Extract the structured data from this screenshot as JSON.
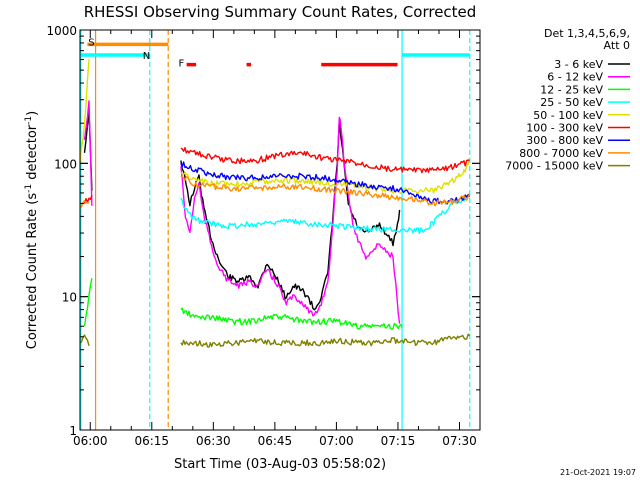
{
  "chart_data": {
    "type": "line",
    "title": "RHESSI Observing Summary Count Rates, Corrected",
    "xlabel": "Start Time (03-Aug-03 05:58:02)",
    "ylabel_main": "Corrected Count Rate (s",
    "ylabel_exp1": "-1",
    "ylabel_mid": " detector",
    "ylabel_exp2": "-1",
    "ylabel_end": ")",
    "yscale": "log",
    "x_range_min": [
      357.5,
      455
    ],
    "ylim": [
      1,
      1000
    ],
    "x_tick_labels": [
      {
        "t": 360,
        "label": "06:00"
      },
      {
        "t": 375,
        "label": "06:15"
      },
      {
        "t": 390,
        "label": "06:30"
      },
      {
        "t": 405,
        "label": "06:45"
      },
      {
        "t": 420,
        "label": "07:00"
      },
      {
        "t": 435,
        "label": "07:15"
      },
      {
        "t": 450,
        "label": "07:30"
      }
    ],
    "y_tick_labels": [
      {
        "v": 1,
        "label": "1"
      },
      {
        "v": 10,
        "label": "10"
      },
      {
        "v": 100,
        "label": "100"
      },
      {
        "v": 1000,
        "label": "1000"
      }
    ],
    "legend_header": [
      "Det 1,3,4,5,6,9,",
      "Att 0"
    ],
    "legend_position": "right",
    "series": [
      {
        "name": "3 - 6 keV",
        "color": "#000000",
        "points": [
          [
            358.6,
            120
          ],
          [
            359.7,
            250
          ],
          [
            360.4,
            60
          ],
          [
            368.5,
            null
          ],
          [
            382.1,
            105
          ],
          [
            384.3,
            50
          ],
          [
            385.4,
            65
          ],
          [
            386.5,
            80
          ],
          [
            387.7,
            45
          ],
          [
            389.9,
            25
          ],
          [
            391.6,
            18
          ],
          [
            393.8,
            14
          ],
          [
            396.5,
            13
          ],
          [
            398.7,
            14
          ],
          [
            400.9,
            12
          ],
          [
            403.1,
            18
          ],
          [
            405.9,
            13
          ],
          [
            407.5,
            10
          ],
          [
            409.7,
            12
          ],
          [
            411.8,
            11
          ],
          [
            413.0,
            10
          ],
          [
            414.6,
            8
          ],
          [
            416.3,
            10
          ],
          [
            417.9,
            15
          ],
          [
            419.0,
            35
          ],
          [
            419.6,
            60
          ],
          [
            420.2,
            100
          ],
          [
            420.7,
            200
          ],
          [
            421.2,
            150
          ],
          [
            421.8,
            100
          ],
          [
            422.9,
            50
          ],
          [
            424.0,
            40
          ],
          [
            425.6,
            32
          ],
          [
            427.2,
            30
          ],
          [
            428.9,
            32
          ],
          [
            430.5,
            35
          ],
          [
            432.1,
            30
          ],
          [
            433.8,
            25
          ],
          [
            434.9,
            35
          ],
          [
            435.4,
            45
          ],
          [
            436.0,
            null
          ]
        ]
      },
      {
        "name": "6 - 12 keV",
        "color": "#ff00ff",
        "points": [
          [
            358.6,
            150
          ],
          [
            359.7,
            280
          ],
          [
            360.4,
            50
          ],
          [
            368.5,
            null
          ],
          [
            382.1,
            95
          ],
          [
            383.2,
            40
          ],
          [
            384.3,
            30
          ],
          [
            385.4,
            55
          ],
          [
            386.5,
            70
          ],
          [
            387.7,
            40
          ],
          [
            389.9,
            22
          ],
          [
            391.6,
            16
          ],
          [
            393.8,
            13
          ],
          [
            396.5,
            12
          ],
          [
            398.7,
            13
          ],
          [
            400.9,
            12
          ],
          [
            403.1,
            16
          ],
          [
            405.9,
            12
          ],
          [
            407.5,
            9
          ],
          [
            409.7,
            10
          ],
          [
            411.8,
            9
          ],
          [
            413.0,
            8
          ],
          [
            414.6,
            7
          ],
          [
            416.3,
            9
          ],
          [
            417.9,
            13
          ],
          [
            419.0,
            30
          ],
          [
            419.6,
            55
          ],
          [
            420.2,
            90
          ],
          [
            420.7,
            230
          ],
          [
            421.2,
            180
          ],
          [
            421.8,
            110
          ],
          [
            422.9,
            60
          ],
          [
            424.0,
            35
          ],
          [
            425.6,
            25
          ],
          [
            427.2,
            20
          ],
          [
            428.9,
            22
          ],
          [
            430.5,
            25
          ],
          [
            432.1,
            22
          ],
          [
            433.8,
            20
          ],
          [
            435.4,
            6
          ],
          [
            436.0,
            null
          ]
        ]
      },
      {
        "name": "12 - 25 keV",
        "color": "#00ff00",
        "points": [
          [
            358.6,
            6
          ],
          [
            359.7,
            10
          ],
          [
            360.4,
            14
          ],
          [
            368.5,
            null
          ],
          [
            382.1,
            8
          ],
          [
            385.4,
            7
          ],
          [
            389.9,
            7
          ],
          [
            394.9,
            6.5
          ],
          [
            398.7,
            6.5
          ],
          [
            403.1,
            7
          ],
          [
            407.5,
            7
          ],
          [
            411.8,
            6.5
          ],
          [
            416.3,
            6.5
          ],
          [
            420.7,
            6.5
          ],
          [
            425.1,
            6
          ],
          [
            429.4,
            6
          ],
          [
            433.8,
            6
          ],
          [
            436.0,
            6
          ]
        ]
      },
      {
        "name": "25 - 50 keV",
        "color": "#00ffff",
        "points": [
          [
            382.1,
            55
          ],
          [
            383.2,
            45
          ],
          [
            385.4,
            38
          ],
          [
            389.9,
            35
          ],
          [
            394.9,
            34
          ],
          [
            400.4,
            35
          ],
          [
            405.9,
            37
          ],
          [
            411.3,
            36
          ],
          [
            416.3,
            35
          ],
          [
            420.7,
            34
          ],
          [
            425.1,
            33
          ],
          [
            429.4,
            32
          ],
          [
            433.8,
            32
          ],
          [
            439.3,
            31
          ],
          [
            441.5,
            32
          ],
          [
            443.7,
            36
          ],
          [
            446.4,
            44
          ],
          [
            448.6,
            50
          ],
          [
            451.4,
            55
          ],
          [
            452.5,
            60
          ]
        ]
      },
      {
        "name": "50 - 100 keV",
        "color": "#e0e000",
        "points": [
          [
            357.5,
            100
          ],
          [
            358.6,
            200
          ],
          [
            359.7,
            600
          ],
          [
            368.5,
            null
          ],
          [
            382.1,
            85
          ],
          [
            385.4,
            75
          ],
          [
            389.9,
            70
          ],
          [
            394.9,
            70
          ],
          [
            400.4,
            72
          ],
          [
            405.9,
            75
          ],
          [
            411.3,
            74
          ],
          [
            416.3,
            72
          ],
          [
            420.7,
            70
          ],
          [
            425.1,
            67
          ],
          [
            429.4,
            65
          ],
          [
            433.8,
            63
          ],
          [
            439.3,
            62
          ],
          [
            443.7,
            63
          ],
          [
            448.6,
            75
          ],
          [
            451.4,
            90
          ],
          [
            452.5,
            110
          ]
        ]
      },
      {
        "name": "100 - 300 keV",
        "color": "#ff0000",
        "points": [
          [
            358.6,
            50
          ],
          [
            359.7,
            56
          ],
          [
            360.4,
            55
          ],
          [
            368.5,
            null
          ],
          [
            382.1,
            130
          ],
          [
            385.4,
            120
          ],
          [
            389.9,
            110
          ],
          [
            394.9,
            105
          ],
          [
            400.4,
            105
          ],
          [
            405.9,
            115
          ],
          [
            411.3,
            120
          ],
          [
            416.3,
            110
          ],
          [
            420.7,
            105
          ],
          [
            425.1,
            100
          ],
          [
            429.4,
            95
          ],
          [
            433.8,
            90
          ],
          [
            439.3,
            88
          ],
          [
            443.7,
            88
          ],
          [
            448.6,
            95
          ],
          [
            451.4,
            100
          ],
          [
            452.5,
            105
          ]
        ]
      },
      {
        "name": "300 - 800 keV",
        "color": "#0000ff",
        "points": [
          [
            382.1,
            100
          ],
          [
            385.4,
            90
          ],
          [
            389.9,
            82
          ],
          [
            394.9,
            78
          ],
          [
            400.4,
            78
          ],
          [
            405.9,
            80
          ],
          [
            411.3,
            80
          ],
          [
            416.3,
            78
          ],
          [
            420.7,
            75
          ],
          [
            425.1,
            70
          ],
          [
            429.4,
            67
          ],
          [
            433.8,
            65
          ],
          [
            439.3,
            58
          ],
          [
            443.7,
            52
          ],
          [
            448.6,
            52
          ],
          [
            451.4,
            55
          ],
          [
            452.5,
            57
          ]
        ]
      },
      {
        "name": "800 - 7000 keV",
        "color": "#ff8c00",
        "points": [
          [
            357.5,
            48
          ],
          [
            358.6,
            50
          ],
          [
            359.7,
            52
          ],
          [
            368.5,
            null
          ],
          [
            382.1,
            80
          ],
          [
            385.4,
            70
          ],
          [
            389.9,
            67
          ],
          [
            394.9,
            65
          ],
          [
            400.4,
            65
          ],
          [
            405.9,
            67
          ],
          [
            411.3,
            66
          ],
          [
            416.3,
            64
          ],
          [
            420.7,
            62
          ],
          [
            425.1,
            60
          ],
          [
            429.4,
            58
          ],
          [
            433.8,
            56
          ],
          [
            439.3,
            54
          ],
          [
            443.7,
            50
          ],
          [
            448.6,
            52
          ],
          [
            451.4,
            55
          ],
          [
            452.5,
            57
          ]
        ]
      },
      {
        "name": "7000 - 15000 keV",
        "color": "#808000",
        "points": [
          [
            357.5,
            4.5
          ],
          [
            358.6,
            5
          ],
          [
            359.7,
            4.5
          ],
          [
            368.5,
            null
          ],
          [
            382.1,
            4.5
          ],
          [
            385.4,
            4.5
          ],
          [
            389.9,
            4.3
          ],
          [
            394.9,
            4.5
          ],
          [
            400.4,
            4.7
          ],
          [
            405.9,
            4.5
          ],
          [
            411.3,
            4.5
          ],
          [
            416.3,
            4.5
          ],
          [
            420.7,
            4.7
          ],
          [
            425.1,
            4.5
          ],
          [
            429.4,
            4.5
          ],
          [
            433.8,
            4.7
          ],
          [
            439.3,
            4.5
          ],
          [
            443.7,
            4.5
          ],
          [
            448.6,
            5
          ],
          [
            451.4,
            5
          ],
          [
            452.5,
            5
          ]
        ]
      }
    ],
    "status_markers": [
      {
        "label": "S",
        "color": "#ff8c00",
        "y": 780,
        "t0": 359.3,
        "t1": 379.0,
        "label_t": 359.5,
        "label_y": 820
      },
      {
        "label": "N",
        "color": "#00ffff",
        "y": 650,
        "t0": 357.5,
        "t1": 374.5,
        "label_t": 372.8,
        "label_y": 650
      },
      {
        "label": "",
        "color": "#00ffff",
        "y": 650,
        "t0": 436.0,
        "t1": 452.5,
        "label_t": null,
        "label_y": null
      },
      {
        "label": "F",
        "color": "#ff0000",
        "y": 550,
        "segments": [
          [
            383.5,
            385.8
          ],
          [
            398.1,
            399.2
          ],
          [
            416.3,
            434.9
          ]
        ],
        "label_t": 381.5,
        "label_y": 570
      }
    ],
    "vertical_markers": [
      {
        "t": 357.7,
        "color": "#00ffff",
        "style": "solid"
      },
      {
        "t": 361.3,
        "color": "#ff8c00",
        "style": "solid"
      },
      {
        "t": 374.5,
        "color": "#00ffff",
        "style": "dash"
      },
      {
        "t": 379.0,
        "color": "#ff8c00",
        "style": "dash"
      },
      {
        "t": 436.0,
        "color": "#00ffff",
        "style": "solid"
      },
      {
        "t": 452.5,
        "color": "#00ffff",
        "style": "dash"
      }
    ],
    "footer_date": "21-Oct-2021 19:07"
  }
}
